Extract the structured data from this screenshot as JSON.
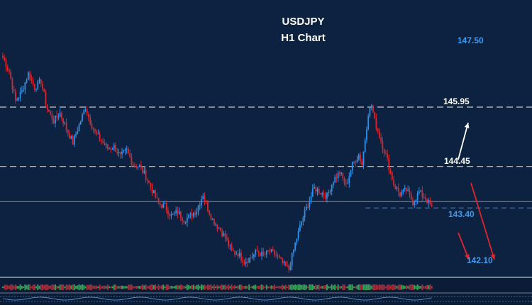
{
  "chart_data": {
    "type": "candlestick",
    "title": "USDJPY",
    "subtitle": "H1 Chart",
    "ylim": [
      141.7,
      148.3
    ],
    "colors": {
      "background": "#0d2240",
      "bull": "#2f8fe8",
      "bear": "#d8262c",
      "resistance_line": "#c8c8c8",
      "support_line": "#3a78c8",
      "up_arrow": "#ffffff",
      "down_arrow": "#e0262c",
      "label_light": "#ffffff",
      "label_blue": "#3a9bf0",
      "oscillator_up": "#3cb65a",
      "oscillator_down": "#c0303a"
    },
    "price_path": [
      [
        0,
        147.2
      ],
      [
        4,
        146.85
      ],
      [
        8,
        146.1
      ],
      [
        12,
        146.35
      ],
      [
        16,
        146.8
      ],
      [
        20,
        146.45
      ],
      [
        24,
        146.6
      ],
      [
        28,
        145.9
      ],
      [
        32,
        145.6
      ],
      [
        36,
        145.8
      ],
      [
        40,
        145.4
      ],
      [
        44,
        145.05
      ],
      [
        48,
        145.5
      ],
      [
        52,
        145.95
      ],
      [
        54,
        145.7
      ],
      [
        58,
        145.3
      ],
      [
        62,
        145.1
      ],
      [
        66,
        144.9
      ],
      [
        70,
        144.95
      ],
      [
        74,
        144.7
      ],
      [
        78,
        144.85
      ],
      [
        82,
        144.5
      ],
      [
        86,
        144.45
      ],
      [
        90,
        144.2
      ],
      [
        94,
        143.85
      ],
      [
        98,
        143.5
      ],
      [
        102,
        143.45
      ],
      [
        106,
        143.2
      ],
      [
        110,
        143.3
      ],
      [
        114,
        143.1
      ],
      [
        118,
        143.2
      ],
      [
        122,
        143.35
      ],
      [
        126,
        143.75
      ],
      [
        128,
        143.5
      ],
      [
        132,
        143.1
      ],
      [
        136,
        142.9
      ],
      [
        140,
        142.65
      ],
      [
        144,
        142.3
      ],
      [
        148,
        142.25
      ],
      [
        152,
        142.05
      ],
      [
        156,
        142.15
      ],
      [
        160,
        142.3
      ],
      [
        164,
        142.2
      ],
      [
        168,
        142.3
      ],
      [
        172,
        142.2
      ],
      [
        176,
        142.0
      ],
      [
        180,
        141.85
      ],
      [
        184,
        142.5
      ],
      [
        188,
        143.05
      ],
      [
        192,
        143.5
      ],
      [
        196,
        143.9
      ],
      [
        200,
        143.8
      ],
      [
        204,
        143.7
      ],
      [
        208,
        144.1
      ],
      [
        212,
        144.3
      ],
      [
        216,
        143.95
      ],
      [
        220,
        144.5
      ],
      [
        224,
        144.75
      ],
      [
        226,
        144.5
      ],
      [
        230,
        145.8
      ],
      [
        232,
        146.0
      ],
      [
        234,
        145.6
      ],
      [
        238,
        145.1
      ],
      [
        242,
        144.6
      ],
      [
        246,
        144.0
      ],
      [
        250,
        143.75
      ],
      [
        254,
        143.85
      ],
      [
        258,
        143.55
      ],
      [
        262,
        143.8
      ],
      [
        266,
        143.65
      ],
      [
        270,
        143.4
      ]
    ],
    "levels": [
      {
        "price": "147.50",
        "value": 147.5,
        "line": "none",
        "label_color": "blue"
      },
      {
        "price": "145.95",
        "value": 145.95,
        "line": "resistance",
        "label_color": "light"
      },
      {
        "price": "144.45",
        "value": 144.45,
        "line": "resistance",
        "label_color": "light"
      },
      {
        "price": "143.40",
        "value": 143.4,
        "line": "support",
        "label_color": "blue"
      },
      {
        "price": "142.10",
        "value": 142.1,
        "line": "none",
        "label_color": "blue"
      }
    ],
    "grid": false,
    "legend": "none"
  }
}
